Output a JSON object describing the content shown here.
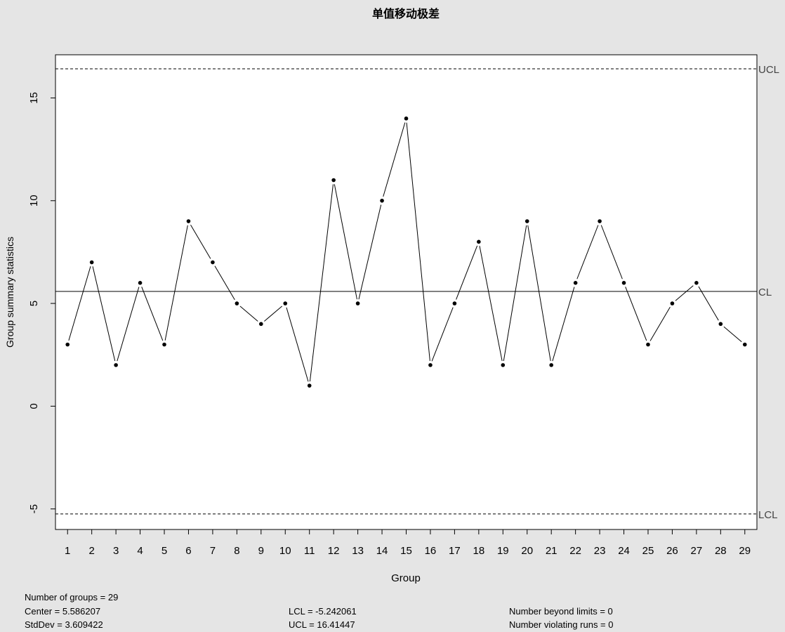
{
  "chart_data": {
    "type": "line",
    "title": "单值移动极差",
    "xlabel": "Group",
    "ylabel": "Group summary statistics",
    "categories": [
      "1",
      "2",
      "3",
      "4",
      "5",
      "6",
      "7",
      "8",
      "9",
      "10",
      "11",
      "12",
      "13",
      "14",
      "15",
      "16",
      "17",
      "18",
      "19",
      "20",
      "21",
      "22",
      "23",
      "24",
      "25",
      "26",
      "27",
      "28",
      "29"
    ],
    "series": [
      {
        "values": [
          3,
          7,
          2,
          6,
          3,
          9,
          7,
          5,
          4,
          5,
          1,
          11,
          5,
          10,
          14,
          2,
          5,
          8,
          2,
          9,
          2,
          6,
          9,
          6,
          3,
          5,
          6,
          4,
          3
        ]
      }
    ],
    "xlim": [
      0.5,
      29.5
    ],
    "ylim": [
      -6,
      17.1
    ],
    "y_ticks": [
      -5,
      0,
      5,
      10,
      15
    ],
    "reference_lines": [
      {
        "label": "UCL",
        "value": 16.41447,
        "style": "dashed"
      },
      {
        "label": "CL",
        "value": 5.586207,
        "style": "solid"
      },
      {
        "label": "LCL",
        "value": -5.242061,
        "style": "dashed"
      }
    ],
    "grid": false,
    "legend": "none"
  },
  "stats": {
    "groups": "Number of groups = 29",
    "center": "Center = 5.586207",
    "stddev": "StdDev = 3.609422",
    "lcl": "LCL = -5.242061",
    "ucl": "UCL = 16.41447",
    "beyond": "Number beyond limits = 0",
    "violating": "Number violating runs = 0"
  }
}
